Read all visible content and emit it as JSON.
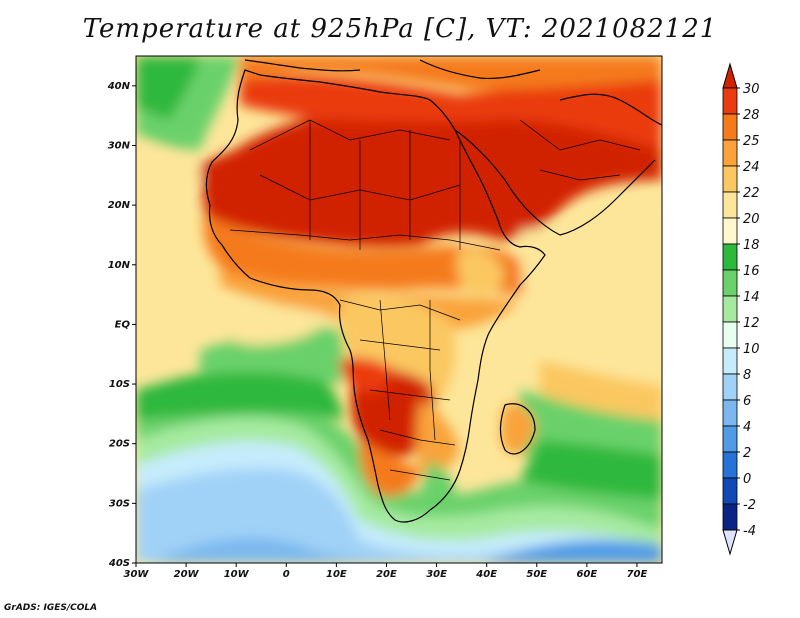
{
  "title": "Temperature at 925hPa [C], VT: 2021082121",
  "variable": "Temperature at 925hPa",
  "units": "C",
  "valid_time": "2021082121",
  "lon_range": [
    -30,
    75
  ],
  "lat_range": [
    -40,
    45
  ],
  "lon_ticks": [
    "30W",
    "20W",
    "10W",
    "0",
    "10E",
    "20E",
    "30E",
    "40E",
    "50E",
    "60E",
    "70E"
  ],
  "lat_ticks": [
    "40N",
    "30N",
    "20N",
    "10N",
    "EQ",
    "10S",
    "20S",
    "30S",
    "40S"
  ],
  "colorbar": {
    "labels": [
      "30",
      "28",
      "25",
      "24",
      "22",
      "20",
      "18",
      "16",
      "14",
      "12",
      "10",
      "8",
      "6",
      "4",
      "2",
      "0",
      "-2",
      "-4"
    ],
    "colors": [
      "#d12200",
      "#ea3a10",
      "#f57a1a",
      "#f9a33a",
      "#fbc760",
      "#fde69a",
      "#fff8cc",
      "#2db83e",
      "#6bd16a",
      "#a6eaa0",
      "#e6fff0",
      "#c6ecfc",
      "#a0d2f7",
      "#7ab8ef",
      "#4f9be6",
      "#2772d6",
      "#1049b6",
      "#0a2485",
      "#dfe3ff"
    ]
  },
  "credit": "GrADS: IGES/COLA"
}
